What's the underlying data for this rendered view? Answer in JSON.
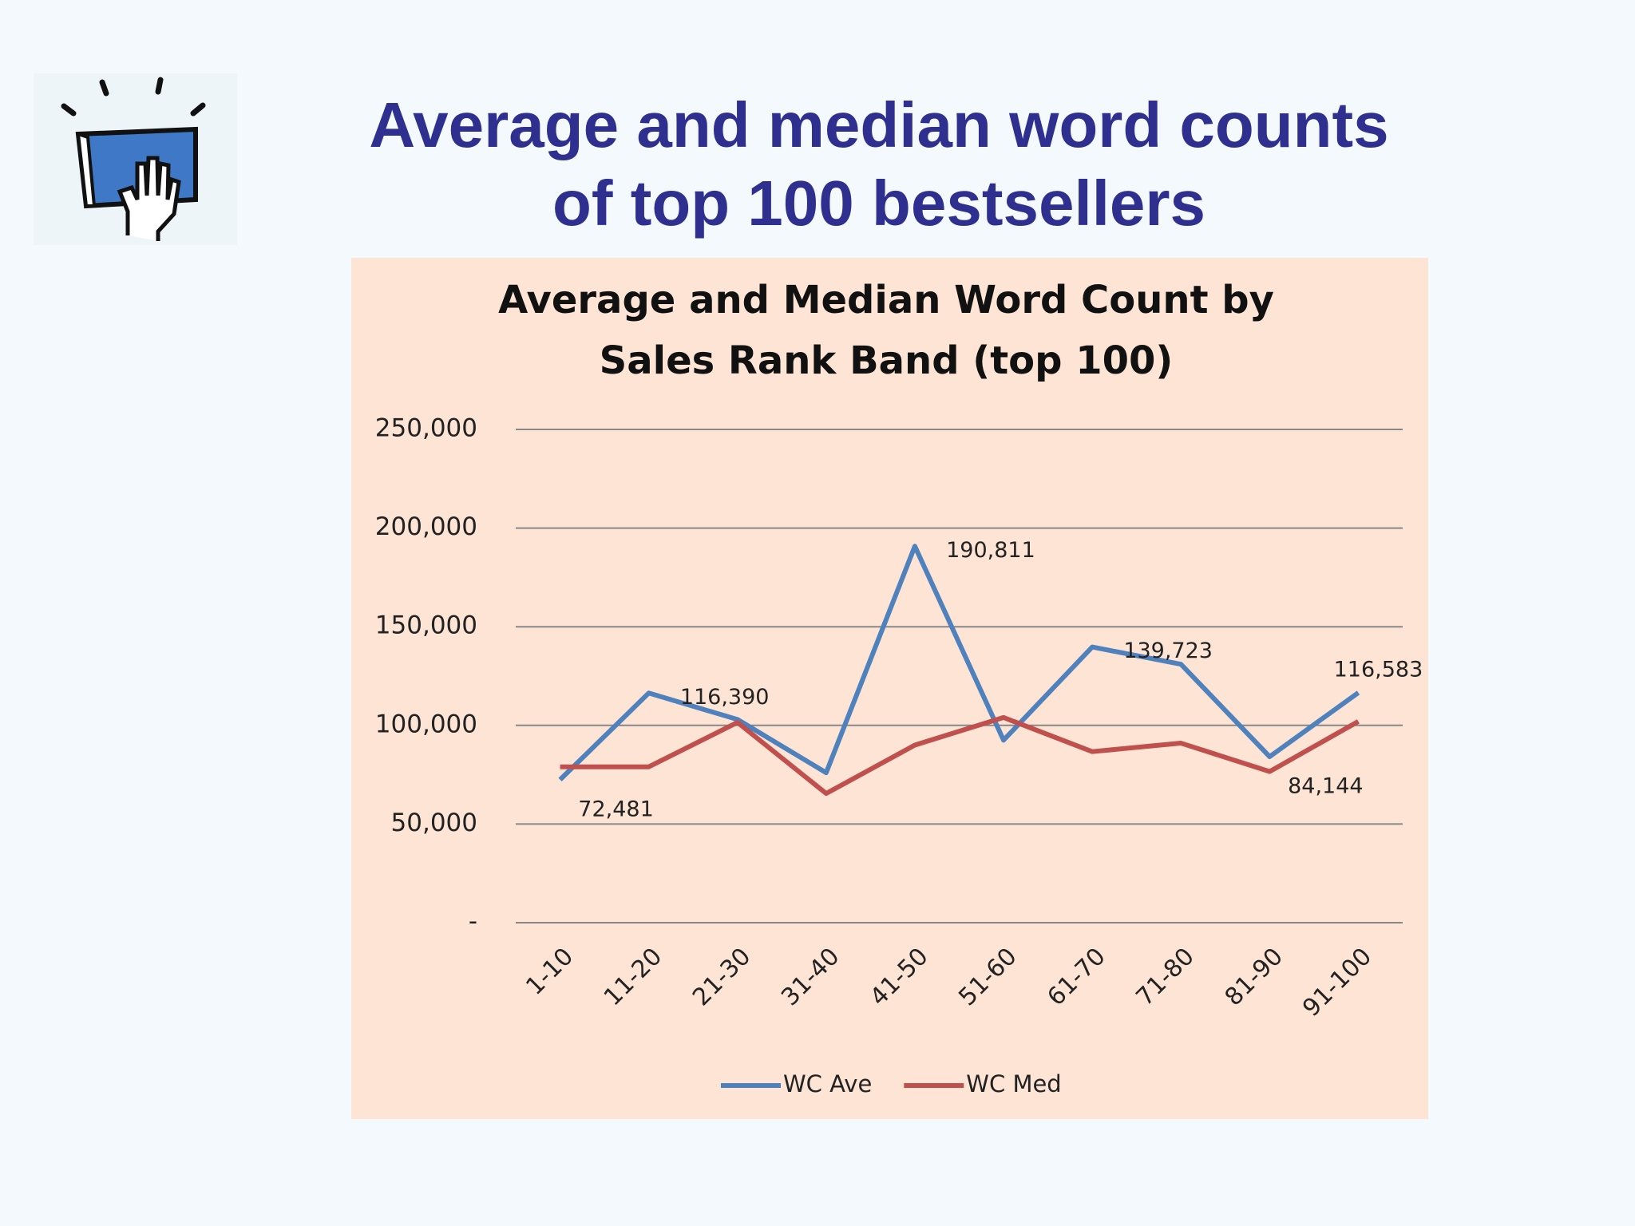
{
  "slide_title": [
    "Average and median word counts",
    "of top 100 bestsellers"
  ],
  "chart_data": {
    "type": "line",
    "title": [
      "Average and Median Word Count by",
      "Sales Rank Band (top 100)"
    ],
    "categories": [
      "1-10",
      "11-20",
      "21-30",
      "31-40",
      "41-50",
      "51-60",
      "61-70",
      "71-80",
      "81-90",
      "91-100"
    ],
    "series": [
      {
        "name": "WC Ave",
        "color": "#4f81bd",
        "values": [
          72481,
          116390,
          103000,
          76000,
          190811,
          92500,
          139723,
          131000,
          84144,
          116583
        ],
        "value_labels": [
          "72,481",
          "116,390",
          null,
          null,
          "190,811",
          null,
          "139,723",
          null,
          "84,144",
          "116,583"
        ]
      },
      {
        "name": "WC Med",
        "color": "#c0504d",
        "values": [
          79000,
          79000,
          101500,
          65500,
          90000,
          104000,
          86700,
          91000,
          76600,
          102000
        ]
      }
    ],
    "ylim": [
      0,
      250000
    ],
    "yticks": [
      {
        "value": 0,
        "label": "-"
      },
      {
        "value": 50000,
        "label": "50,000"
      },
      {
        "value": 100000,
        "label": "100,000"
      },
      {
        "value": 150000,
        "label": "150,000"
      },
      {
        "value": 200000,
        "label": "200,000"
      },
      {
        "value": 250000,
        "label": "250,000"
      }
    ],
    "grid": true,
    "legend": "bottom"
  }
}
